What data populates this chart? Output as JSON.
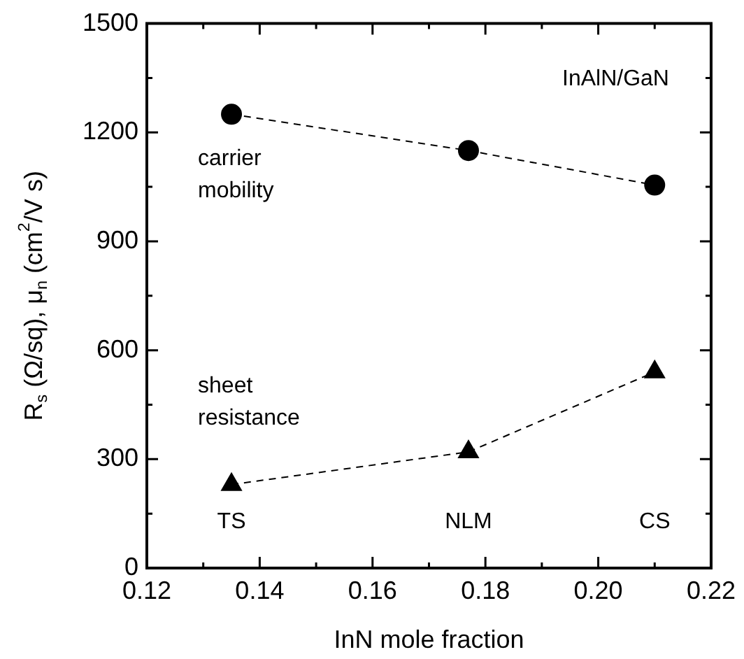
{
  "chart_data": {
    "type": "line",
    "xlabel": "InN mole fraction",
    "ylabel": "R$_{s}$ (Ω/sq), μ$_{n}$ (cm$^{2}$/V s)",
    "x": [
      0.135,
      0.177,
      0.21
    ],
    "series": [
      {
        "name": "carrier mobility",
        "color": "#000000",
        "marker": "circle",
        "values": [
          1250,
          1150,
          1055
        ]
      },
      {
        "name": "sheet resistance",
        "color": "#000000",
        "marker": "triangle",
        "values": [
          230,
          320,
          540
        ]
      }
    ],
    "xlim": [
      0.12,
      0.22
    ],
    "xticks": [
      0.12,
      {
        "value": 0.13,
        "label": null
      },
      0.14,
      {
        "value": 0.15,
        "label": null
      },
      0.16,
      {
        "value": 0.17,
        "label": null
      },
      0.18,
      {
        "value": 0.19,
        "label": null
      },
      {
        "value": 0.2,
        "label": "0.20"
      },
      {
        "value": 0.21,
        "label": null
      },
      0.22
    ],
    "ylim": [
      0,
      1500
    ],
    "yticks": [
      0,
      {
        "value": 150,
        "label": null
      },
      300,
      {
        "value": 450,
        "label": null
      },
      600,
      {
        "value": 750,
        "label": null
      },
      900,
      {
        "value": 1050,
        "label": null
      },
      1200,
      {
        "value": 1350,
        "label": null
      },
      1500
    ],
    "line_style": "dashed",
    "grid": false,
    "legend": false,
    "annotations": [
      "InAlN/GaN",
      "TS",
      "NLM",
      "CS"
    ]
  }
}
